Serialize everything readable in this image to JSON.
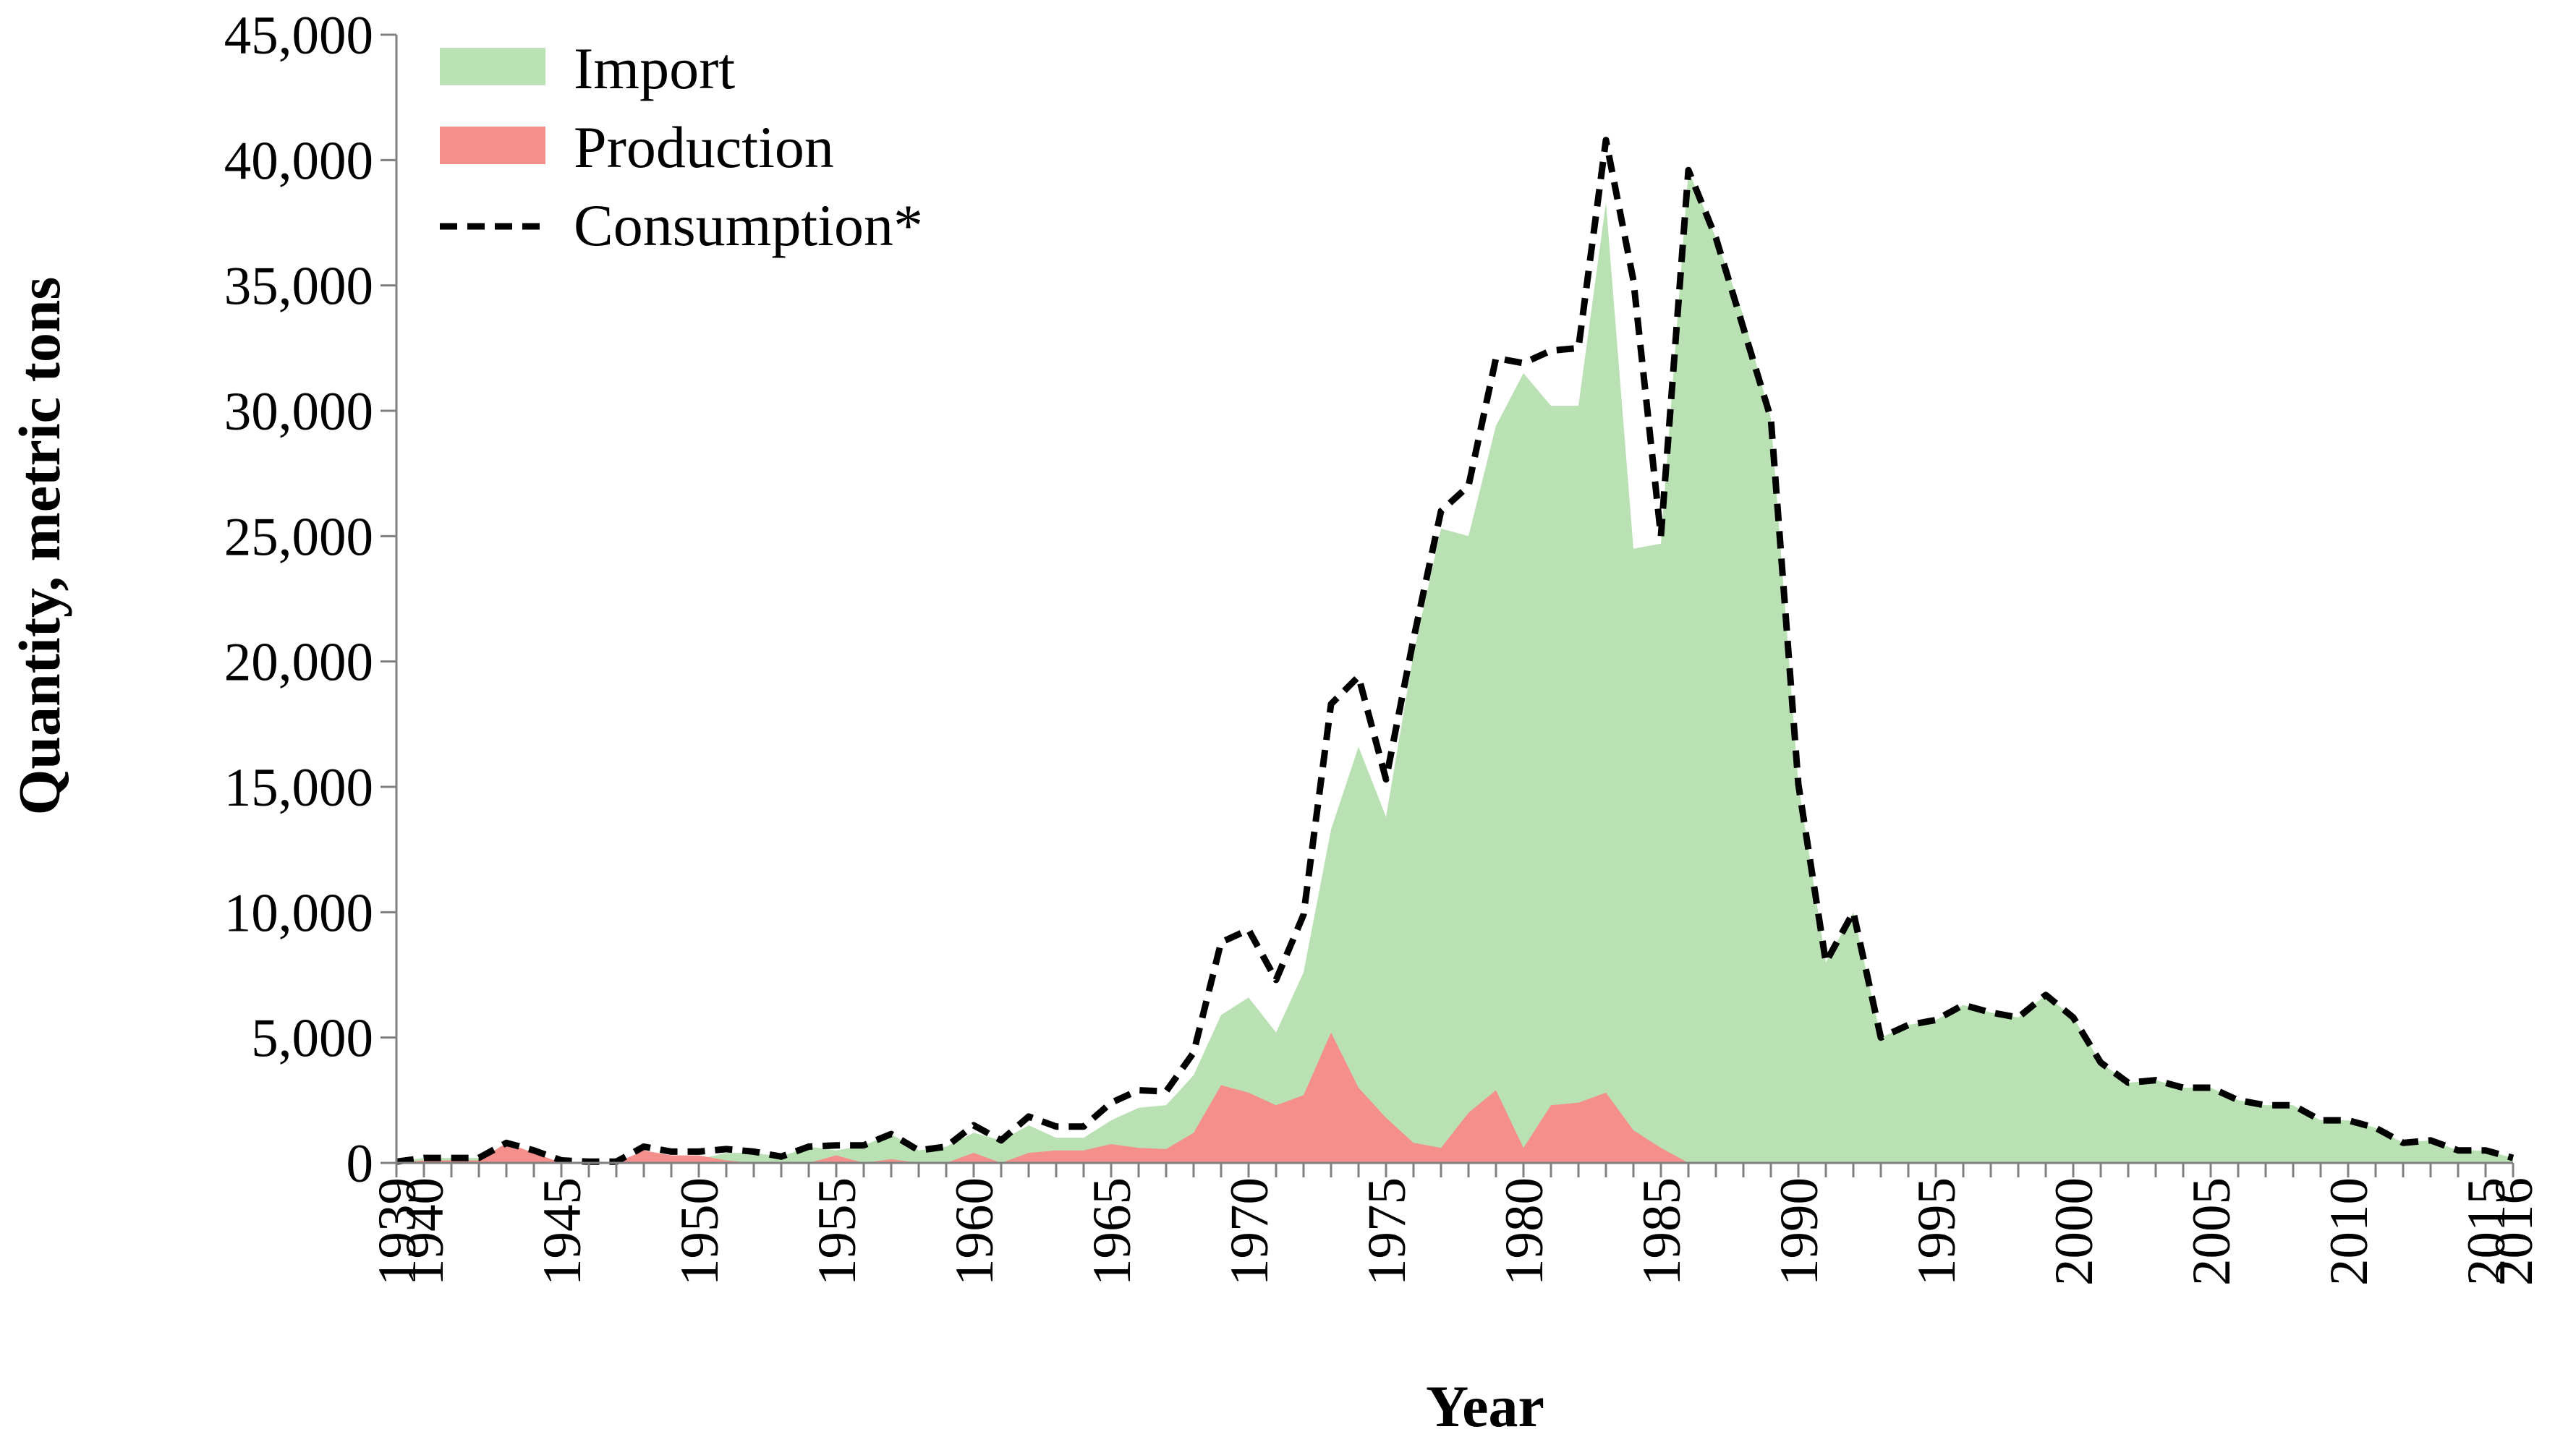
{
  "chart_data": {
    "type": "area",
    "title": "",
    "xlabel": "Year",
    "ylabel": "Quantity, metric tons",
    "xlim": [
      1939,
      2016
    ],
    "ylim": [
      0,
      45000
    ],
    "yticks": [
      0,
      5000,
      10000,
      15000,
      20000,
      25000,
      30000,
      35000,
      40000,
      45000
    ],
    "ytick_labels": [
      "0",
      "5,000",
      "10,000",
      "15,000",
      "20,000",
      "25,000",
      "30,000",
      "35,000",
      "40,000",
      "45,000"
    ],
    "xtick_labels": [
      "1939",
      "1940",
      "1945",
      "1950",
      "1955",
      "1960",
      "1965",
      "1970",
      "1975",
      "1980",
      "1985",
      "1990",
      "1995",
      "2000",
      "2005",
      "2010",
      "2015",
      "2016"
    ],
    "legend_position": "top-left",
    "x": [
      1939,
      1940,
      1941,
      1942,
      1943,
      1944,
      1945,
      1946,
      1947,
      1948,
      1949,
      1950,
      1951,
      1952,
      1953,
      1954,
      1955,
      1956,
      1957,
      1958,
      1959,
      1960,
      1961,
      1962,
      1963,
      1964,
      1965,
      1966,
      1967,
      1968,
      1969,
      1970,
      1971,
      1972,
      1973,
      1974,
      1975,
      1976,
      1977,
      1978,
      1979,
      1980,
      1981,
      1982,
      1983,
      1984,
      1985,
      1986,
      1987,
      1988,
      1989,
      1990,
      1991,
      1992,
      1993,
      1994,
      1995,
      1996,
      1997,
      1998,
      1999,
      2000,
      2001,
      2002,
      2003,
      2004,
      2005,
      2006,
      2007,
      2008,
      2009,
      2010,
      2011,
      2012,
      2013,
      2014,
      2015,
      2016
    ],
    "series": [
      {
        "name": "Import",
        "style": "area",
        "color": "#b9e1b3",
        "values": [
          50,
          200,
          200,
          200,
          100,
          100,
          50,
          50,
          50,
          50,
          100,
          150,
          400,
          400,
          250,
          650,
          500,
          700,
          1150,
          500,
          650,
          1200,
          900,
          1500,
          1000,
          1000,
          1700,
          2200,
          2300,
          3500,
          5900,
          6600,
          5200,
          7600,
          13300,
          16600,
          13800,
          20300,
          25300,
          25000,
          29400,
          31500,
          30200,
          30200,
          38300,
          24500,
          24700,
          39600,
          36900,
          33800,
          29700,
          15100,
          8000,
          10000,
          5000,
          5500,
          5700,
          6300,
          6000,
          5800,
          6700,
          5800,
          4000,
          3200,
          3300,
          3000,
          3000,
          2500,
          2300,
          2300,
          1700,
          1700,
          1400,
          800,
          900,
          500,
          500,
          200
        ]
      },
      {
        "name": "Production",
        "style": "area",
        "color": "#f48f8b",
        "values": [
          0,
          100,
          100,
          100,
          800,
          400,
          0,
          0,
          0,
          500,
          300,
          300,
          100,
          0,
          0,
          0,
          300,
          0,
          150,
          0,
          0,
          400,
          0,
          400,
          500,
          500,
          750,
          600,
          550,
          1200,
          3100,
          2800,
          2300,
          2700,
          5200,
          3000,
          1800,
          800,
          600,
          2000,
          2900,
          600,
          2300,
          2400,
          2800,
          1300,
          600,
          0,
          0,
          0,
          0,
          0,
          0,
          0,
          0,
          0,
          0,
          0,
          0,
          0,
          0,
          0,
          0,
          0,
          0,
          0,
          0,
          0,
          0,
          0,
          0,
          0,
          0,
          0,
          0,
          0,
          0,
          0
        ]
      },
      {
        "name": "Consumption*",
        "style": "dashed-line",
        "color": "#000000",
        "values": [
          50,
          200,
          200,
          200,
          800,
          500,
          100,
          50,
          50,
          650,
          450,
          450,
          550,
          450,
          250,
          650,
          700,
          700,
          1150,
          500,
          650,
          1500,
          900,
          1850,
          1450,
          1450,
          2400,
          2900,
          2850,
          4400,
          8800,
          9300,
          7300,
          9900,
          18300,
          19400,
          15300,
          20900,
          26000,
          27000,
          32100,
          31900,
          32400,
          32500,
          40800,
          35200,
          25000,
          39600,
          36900,
          33300,
          29700,
          15100,
          8000,
          10000,
          5000,
          5500,
          5700,
          6300,
          6000,
          5800,
          6700,
          5800,
          4000,
          3200,
          3300,
          3000,
          3000,
          2500,
          2300,
          2300,
          1700,
          1700,
          1400,
          800,
          900,
          500,
          500,
          200
        ]
      }
    ]
  }
}
